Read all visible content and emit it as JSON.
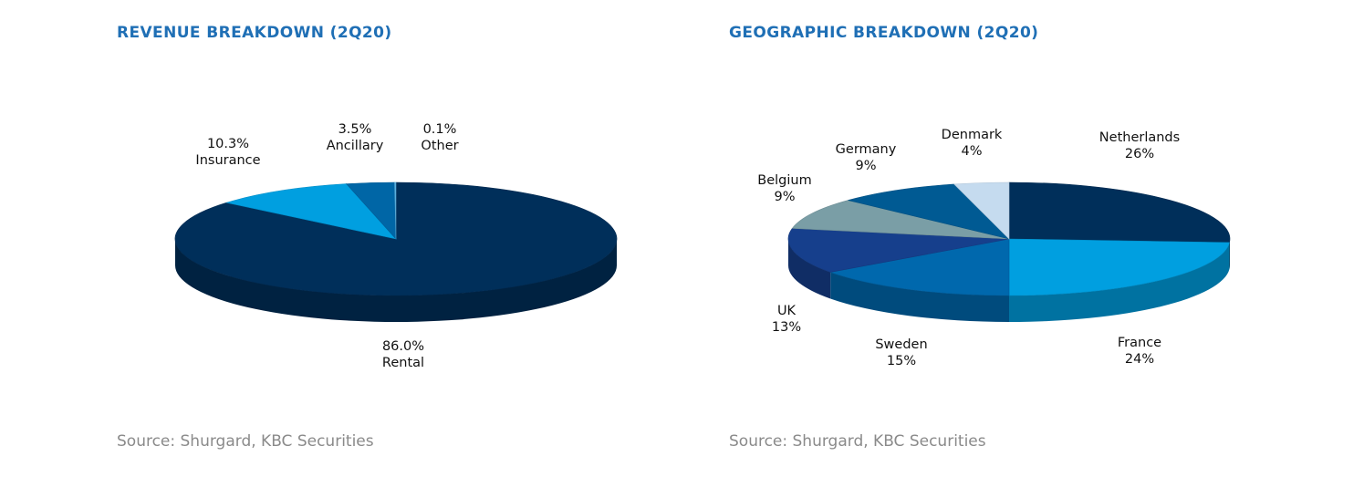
{
  "chart_data": [
    {
      "type": "pie",
      "title": "REVENUE BREAKDOWN (2Q20)",
      "source": "Source: Shurgard, KBC Securities",
      "slices": [
        {
          "name": "Rental",
          "value": 86.0,
          "label": "86.0%",
          "color": "#002f5a"
        },
        {
          "name": "Insurance",
          "value": 10.3,
          "label": "10.3%",
          "color": "#009fe0"
        },
        {
          "name": "Ancillary",
          "value": 3.5,
          "label": "3.5%",
          "color": "#0066a6"
        },
        {
          "name": "Other",
          "value": 0.1,
          "label": "0.1%",
          "color": "#5fb6e6"
        }
      ]
    },
    {
      "type": "pie",
      "title": "GEOGRAPHIC BREAKDOWN (2Q20)",
      "source": "Source: Shurgard, KBC Securities",
      "slices": [
        {
          "name": "Netherlands",
          "value": 26,
          "label": "26%",
          "color": "#002f5a"
        },
        {
          "name": "France",
          "value": 24,
          "label": "24%",
          "color": "#009fe0"
        },
        {
          "name": "Sweden",
          "value": 15,
          "label": "15%",
          "color": "#0068ad"
        },
        {
          "name": "UK",
          "value": 13,
          "label": "13%",
          "color": "#163f8c"
        },
        {
          "name": "Belgium",
          "value": 9,
          "label": "9%",
          "color": "#7a9ea6"
        },
        {
          "name": "Germany",
          "value": 9,
          "label": "9%",
          "color": "#005a93"
        },
        {
          "name": "Denmark",
          "value": 4,
          "label": "4%",
          "color": "#c5dbef"
        }
      ]
    }
  ]
}
